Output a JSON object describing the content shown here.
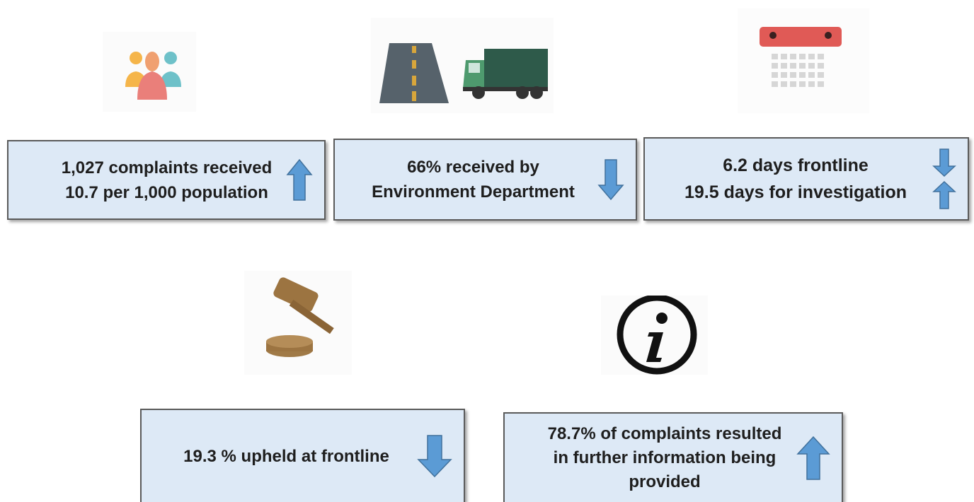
{
  "cards": [
    {
      "lines": [
        "1,027 complaints received",
        "10.7 per 1,000 population"
      ]
    },
    {
      "lines": [
        "66% received by",
        "Environment Department"
      ]
    },
    {
      "lines": [
        "6.2 days frontline",
        "19.5 days for investigation"
      ]
    },
    {
      "lines": [
        "19.3 % upheld at frontline"
      ]
    },
    {
      "lines": [
        "78.7% of complaints resulted",
        "in further information being",
        "provided"
      ]
    }
  ]
}
